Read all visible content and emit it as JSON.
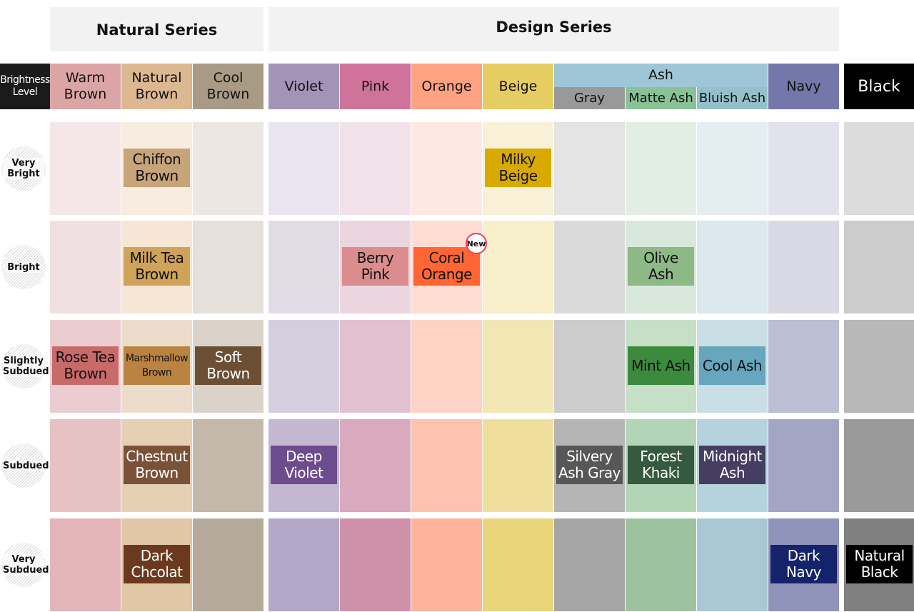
{
  "series": {
    "natural": "Natural Series",
    "design": "Design Series"
  },
  "brightness_header": "Brightness Level",
  "columns": [
    {
      "key": "warm-brown",
      "label": "Warm Brown",
      "color": "#dca5a5"
    },
    {
      "key": "natural-brown",
      "label": "Natural Brown",
      "color": "#dcb890"
    },
    {
      "key": "cool-brown",
      "label": "Cool Brown",
      "color": "#a99a86"
    },
    {
      "key": "violet",
      "label": "Violet",
      "color": "#a393b7"
    },
    {
      "key": "pink",
      "label": "Pink",
      "color": "#d0739b"
    },
    {
      "key": "orange",
      "label": "Orange",
      "color": "#fea282"
    },
    {
      "key": "beige",
      "label": "Beige",
      "color": "#e6cd62"
    },
    {
      "key": "gray",
      "label": "Gray",
      "color": "#999999"
    },
    {
      "key": "matte-ash",
      "label": "Matte Ash",
      "color": "#88c295"
    },
    {
      "key": "bluish-ash",
      "label": "Bluish Ash",
      "color": "#94c0cc"
    },
    {
      "key": "navy",
      "label": "Navy",
      "color": "#7377a9"
    },
    {
      "key": "black",
      "label": "Black",
      "color": "#000000"
    }
  ],
  "ash_group": {
    "label": "Ash",
    "color": "#9fc6d6"
  },
  "levels": [
    {
      "label": "Very Bright"
    },
    {
      "label": "Bright"
    },
    {
      "label": "Slightly Subdued"
    },
    {
      "label": "Subdued"
    },
    {
      "label": "Very Subdued"
    }
  ],
  "cell_colors": [
    [
      "#f5e7e7",
      "#f7ece0",
      "#ece7e2",
      "#e9e4ef",
      "#f1e2e9",
      "#ffe8e1",
      "#f8f1d8",
      "#e4e4e4",
      "#e2eee3",
      "#e4eef2",
      "#e2e2ed",
      "#dcdcdc"
    ],
    [
      "#f1e0e1",
      "#f5e6d6",
      "#e6e0db",
      "#e1dbe6",
      "#ebd5df",
      "#ffddd3",
      "#f6efca",
      "#dadada",
      "#d8e8da",
      "#dbe8ed",
      "#d9d9e6",
      "#cccccc"
    ],
    [
      "#ebcdd1",
      "#ecdccb",
      "#dbd2ca",
      "#d5cedf",
      "#e2c0cf",
      "#fed3c5",
      "#f3e6b5",
      "#cccccc",
      "#c5e0c7",
      "#c8dfe5",
      "#bcbed6",
      "#b8b8b8"
    ],
    [
      "#e7c2c5",
      "#e6d0b4",
      "#c3b8aa",
      "#c4b7d2",
      "#d9a9bd",
      "#fec3af",
      "#f0df9c",
      "#b5b5b5",
      "#b3d5b7",
      "#b5d3dc",
      "#a3a5c5",
      "#9a9a9a"
    ],
    [
      "#e3b5b8",
      "#e1c7a5",
      "#b5aa99",
      "#b3a6c6",
      "#cf91aa",
      "#feb49a",
      "#ead57b",
      "#a6a6a6",
      "#9dc39e",
      "#a8c8d3",
      "#9093ba",
      "#808080"
    ]
  ],
  "chips": [
    {
      "text": "Chiffon Brown",
      "row": 0,
      "col": 1,
      "bg": "#c8a47a",
      "fg": "#111111"
    },
    {
      "text": "Milky Beige",
      "row": 0,
      "col": 6,
      "bg": "#d8aa00",
      "fg": "#111111"
    },
    {
      "text": "Milk Tea Brown",
      "row": 1,
      "col": 1,
      "bg": "#cfa35a",
      "fg": "#111111"
    },
    {
      "text": "Berry Pink",
      "row": 1,
      "col": 4,
      "bg": "#db8d8d",
      "fg": "#111111"
    },
    {
      "text": "Coral Orange",
      "row": 1,
      "col": 5,
      "bg": "#ff6633",
      "fg": "#111111",
      "badge": "New"
    },
    {
      "text": "Olive Ash",
      "row": 1,
      "col": 8,
      "bg": "#8db987",
      "fg": "#111111"
    },
    {
      "text": "Rose Tea Brown",
      "row": 2,
      "col": 0,
      "bg": "#c96a6a",
      "fg": "#111111"
    },
    {
      "text": "Marshmallow Brown",
      "row": 2,
      "col": 1,
      "bg": "#b98440",
      "fg": "#111111",
      "small_first": true
    },
    {
      "text": "Soft Brown",
      "row": 2,
      "col": 2,
      "bg": "#6b5035",
      "fg": "#ffffff"
    },
    {
      "text": "Mint Ash",
      "row": 2,
      "col": 8,
      "bg": "#3c8a3e",
      "fg": "#111111"
    },
    {
      "text": "Cool Ash",
      "row": 2,
      "col": 9,
      "bg": "#67a6bd",
      "fg": "#111111"
    },
    {
      "text": "Chestnut Brown",
      "row": 3,
      "col": 1,
      "bg": "#7a5238",
      "fg": "#ffffff"
    },
    {
      "text": "Deep Violet",
      "row": 3,
      "col": 3,
      "bg": "#6d4c8e",
      "fg": "#ffffff"
    },
    {
      "text": "Silvery Ash Gray",
      "row": 3,
      "col": 7,
      "bg": "#575757",
      "fg": "#ffffff"
    },
    {
      "text": "Forest Khaki",
      "row": 3,
      "col": 8,
      "bg": "#355a3f",
      "fg": "#ffffff"
    },
    {
      "text": "Midnight Ash",
      "row": 3,
      "col": 9,
      "bg": "#463d62",
      "fg": "#ffffff"
    },
    {
      "text": "Dark Chcolat",
      "row": 4,
      "col": 1,
      "bg": "#6b3a1e",
      "fg": "#ffffff"
    },
    {
      "text": "Dark Navy",
      "row": 4,
      "col": 10,
      "bg": "#15236b",
      "fg": "#ffffff"
    },
    {
      "text": "Natural Black",
      "row": 4,
      "col": 11,
      "bg": "#000000",
      "fg": "#ffffff"
    }
  ]
}
